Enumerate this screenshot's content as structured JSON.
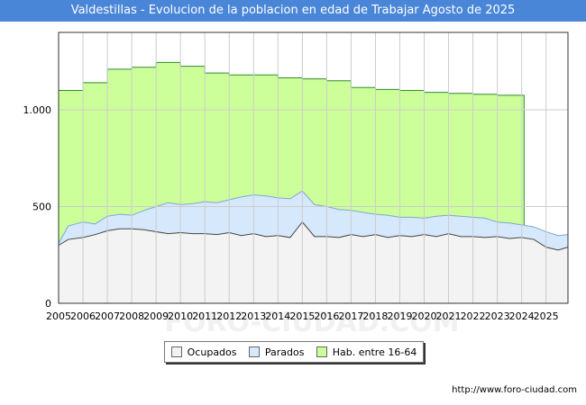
{
  "chart_data": {
    "type": "area",
    "title": "Valdestillas - Evolucion de la poblacion en edad de Trabajar Agosto de 2025",
    "xlabel": "",
    "ylabel": "",
    "x_range": [
      2005,
      2025.9
    ],
    "ylim": [
      0,
      1400
    ],
    "y_ticks": [
      0,
      500,
      1000
    ],
    "y_tick_labels": [
      "0",
      "500",
      "1.000"
    ],
    "x_tick_labels": [
      "2005",
      "2006",
      "2007",
      "2008",
      "2009",
      "2010",
      "2011",
      "2012",
      "2013",
      "2014",
      "2015",
      "2016",
      "2017",
      "2018",
      "2019",
      "2020",
      "2021",
      "2022",
      "2023",
      "2024",
      "2025"
    ],
    "watermark": "FORO-CIUDAD.COM",
    "series": [
      {
        "name": "Hab. entre 16-64",
        "color": "#ccff99",
        "line_color": "#2e8b2e",
        "steps": [
          [
            2005,
            1100
          ],
          [
            2006,
            1140
          ],
          [
            2007,
            1210
          ],
          [
            2008,
            1220
          ],
          [
            2009,
            1245
          ],
          [
            2010,
            1225
          ],
          [
            2011,
            1190
          ],
          [
            2012,
            1180
          ],
          [
            2013,
            1180
          ],
          [
            2014,
            1165
          ],
          [
            2015,
            1160
          ],
          [
            2016,
            1150
          ],
          [
            2017,
            1115
          ],
          [
            2018,
            1105
          ],
          [
            2019,
            1100
          ],
          [
            2020,
            1090
          ],
          [
            2021,
            1085
          ],
          [
            2022,
            1080
          ],
          [
            2023,
            1075
          ]
        ],
        "end": 2024.1
      },
      {
        "name": "Parados",
        "color": "#d6e8fb",
        "line_color": "#7fa6d6",
        "points": [
          [
            2005,
            310
          ],
          [
            2005.4,
            400
          ],
          [
            2006,
            420
          ],
          [
            2006.5,
            410
          ],
          [
            2007,
            450
          ],
          [
            2007.5,
            460
          ],
          [
            2008,
            455
          ],
          [
            2008.5,
            480
          ],
          [
            2009,
            500
          ],
          [
            2009.5,
            520
          ],
          [
            2010,
            510
          ],
          [
            2010.5,
            515
          ],
          [
            2011,
            525
          ],
          [
            2011.5,
            520
          ],
          [
            2012,
            535
          ],
          [
            2012.5,
            550
          ],
          [
            2013,
            560
          ],
          [
            2013.5,
            555
          ],
          [
            2014,
            545
          ],
          [
            2014.5,
            540
          ],
          [
            2015,
            580
          ],
          [
            2015.5,
            510
          ],
          [
            2016,
            500
          ],
          [
            2016.5,
            485
          ],
          [
            2017,
            480
          ],
          [
            2017.5,
            470
          ],
          [
            2018,
            460
          ],
          [
            2018.5,
            455
          ],
          [
            2019,
            445
          ],
          [
            2019.5,
            445
          ],
          [
            2020,
            440
          ],
          [
            2020.5,
            450
          ],
          [
            2021,
            455
          ],
          [
            2021.5,
            450
          ],
          [
            2022,
            445
          ],
          [
            2022.5,
            440
          ],
          [
            2023,
            420
          ],
          [
            2023.5,
            415
          ],
          [
            2024,
            405
          ],
          [
            2024.5,
            395
          ],
          [
            2025,
            370
          ],
          [
            2025.5,
            350
          ],
          [
            2025.9,
            355
          ]
        ]
      },
      {
        "name": "Ocupados",
        "color": "#f3f3f3",
        "line_color": "#444444",
        "points": [
          [
            2005,
            300
          ],
          [
            2005.4,
            330
          ],
          [
            2006,
            340
          ],
          [
            2006.5,
            355
          ],
          [
            2007,
            375
          ],
          [
            2007.5,
            385
          ],
          [
            2008,
            385
          ],
          [
            2008.5,
            380
          ],
          [
            2009,
            370
          ],
          [
            2009.5,
            360
          ],
          [
            2010,
            365
          ],
          [
            2010.5,
            360
          ],
          [
            2011,
            360
          ],
          [
            2011.5,
            355
          ],
          [
            2012,
            365
          ],
          [
            2012.5,
            350
          ],
          [
            2013,
            360
          ],
          [
            2013.5,
            345
          ],
          [
            2014,
            350
          ],
          [
            2014.5,
            340
          ],
          [
            2015,
            420
          ],
          [
            2015.5,
            345
          ],
          [
            2016,
            345
          ],
          [
            2016.5,
            340
          ],
          [
            2017,
            355
          ],
          [
            2017.5,
            345
          ],
          [
            2018,
            355
          ],
          [
            2018.5,
            340
          ],
          [
            2019,
            350
          ],
          [
            2019.5,
            345
          ],
          [
            2020,
            355
          ],
          [
            2020.5,
            345
          ],
          [
            2021,
            360
          ],
          [
            2021.5,
            345
          ],
          [
            2022,
            345
          ],
          [
            2022.5,
            340
          ],
          [
            2023,
            345
          ],
          [
            2023.5,
            335
          ],
          [
            2024,
            340
          ],
          [
            2024.5,
            330
          ],
          [
            2025,
            290
          ],
          [
            2025.5,
            275
          ],
          [
            2025.9,
            290
          ]
        ]
      }
    ],
    "legend_position": "bottom-center",
    "source": "http://www.foro-ciudad.com"
  },
  "legend": {
    "items": [
      {
        "label": "Ocupados",
        "color": "#f3f3f3"
      },
      {
        "label": "Parados",
        "color": "#d6e8fb"
      },
      {
        "label": "Hab. entre 16-64",
        "color": "#ccff99"
      }
    ]
  }
}
